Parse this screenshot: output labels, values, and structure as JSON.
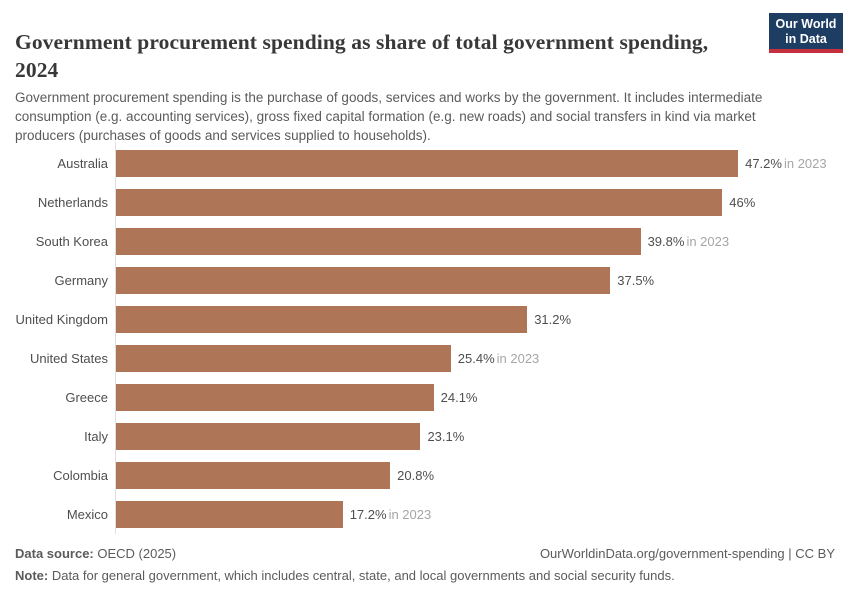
{
  "header": {
    "title": "Government procurement spending as share of total government spending, 2024",
    "subtitle": "Government procurement spending is the purchase of goods, services and works by the government. It includes intermediate consumption (e.g. accounting services), gross fixed capital formation (e.g. new roads) and social transfers in kind via market producers (purchases of goods and services supplied to households).",
    "logo": {
      "line1": "Our World",
      "line2": "in Data"
    }
  },
  "chart_data": {
    "type": "bar",
    "orientation": "horizontal",
    "title": "Government procurement spending as share of total government spending, 2024",
    "categories": [
      "Australia",
      "Netherlands",
      "South Korea",
      "Germany",
      "United Kingdom",
      "United States",
      "Greece",
      "Italy",
      "Colombia",
      "Mexico"
    ],
    "values": [
      47.2,
      46,
      39.8,
      37.5,
      31.2,
      25.4,
      24.1,
      23.1,
      20.8,
      17.2
    ],
    "value_labels": [
      "47.2%",
      "46%",
      "39.8%",
      "37.5%",
      "31.2%",
      "25.4%",
      "24.1%",
      "23.1%",
      "20.8%",
      "17.2%"
    ],
    "value_notes": [
      "in 2023",
      "",
      "in 2023",
      "",
      "",
      "in 2023",
      "",
      "",
      "",
      "in 2023"
    ],
    "xlim": [
      0,
      47.2
    ],
    "xlabel": "",
    "ylabel": "",
    "grid": false,
    "legend": false
  },
  "colors": {
    "bar": "#AE7557",
    "logo_navy": "#1d3d63",
    "logo_red": "#c5303e",
    "axis": "#dedede"
  },
  "footer": {
    "source_label": "Data source:",
    "source_value": " OECD (2025)",
    "url_text": "OurWorldinData.org/government-spending | CC BY",
    "note_label": "Note:",
    "note_value": " Data for general government, which includes central, state, and local governments and social security funds."
  }
}
